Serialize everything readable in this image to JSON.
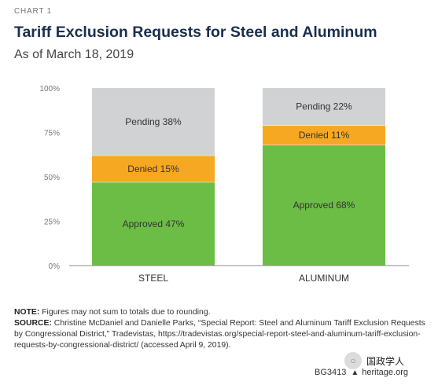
{
  "header": {
    "chart_label": "CHART 1",
    "title": "Tariff Exclusion Requests for Steel and Aluminum",
    "subtitle": "As of March 18, 2019"
  },
  "chart_data": {
    "type": "bar",
    "stacked": true,
    "categories": [
      "STEEL",
      "ALUMINUM"
    ],
    "series": [
      {
        "name": "Approved",
        "values": [
          47,
          68
        ],
        "color": "#6cbd45"
      },
      {
        "name": "Denied",
        "values": [
          15,
          11
        ],
        "color": "#f7a823"
      },
      {
        "name": "Pending",
        "values": [
          38,
          22
        ],
        "color": "#d1d2d4"
      }
    ],
    "segment_labels": [
      [
        "Approved 47%",
        "Denied 15%",
        "Pending 38%"
      ],
      [
        "Approved 68%",
        "Denied 11%",
        "Pending 22%"
      ]
    ],
    "y_ticks": [
      "0%",
      "25%",
      "50%",
      "75%",
      "100%"
    ],
    "ylim": [
      0,
      100
    ],
    "grid": false,
    "legend": "none"
  },
  "notes": {
    "note_label": "NOTE:",
    "note_text": " Figures may not sum to totals due to rounding.",
    "source_label": "SOURCE:",
    "source_text": " Christine McDaniel and Danielle Parks, “Special Report: Steel and Aluminum Tariff Exclusion Requests by Congressional District,” Tradevistas, https://tradevistas.org/special-report-steel-and-aluminum-tariff-exclusion-requests-by-congressional-district/ (accessed April 9, 2019)."
  },
  "footer": {
    "code": "BG3413",
    "site": "heritage.org",
    "bell_icon": "liberty-bell-icon"
  },
  "watermark": {
    "text": "国政学人",
    "icon": "wechat-icon"
  }
}
